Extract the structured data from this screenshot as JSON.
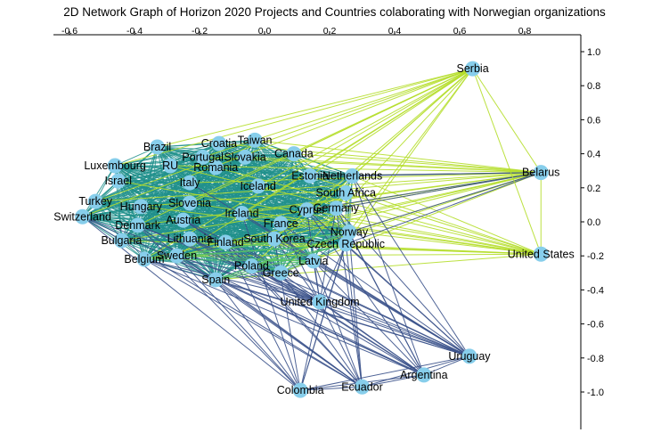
{
  "chart_data": {
    "type": "scatter",
    "title": "2D Network Graph of Horizon 2020 Projects and Countries colaborating with Norwegian organizations",
    "xlabel": "",
    "ylabel": "",
    "xlim": [
      -0.65,
      0.95
    ],
    "ylim": [
      -1.22,
      1.05
    ],
    "xticks": [
      -0.6,
      -0.4,
      -0.2,
      0.0,
      0.2,
      0.4,
      0.6,
      0.8
    ],
    "xtick_labels": [
      "-0.6",
      "-0.4",
      "-0.2",
      "0.0",
      "0.2",
      "0.4",
      "0.6",
      "0.8"
    ],
    "yticks": [
      1.0,
      0.8,
      0.6,
      0.4,
      0.2,
      0.0,
      -0.2,
      -0.4,
      -0.6,
      -0.8,
      -1.0
    ],
    "ytick_labels": [
      "1.0",
      "0.8",
      "0.6",
      "0.4",
      "0.2",
      "0.0",
      "-0.2",
      "-0.4",
      "-0.6",
      "-0.8",
      "-1.0"
    ],
    "grid": false,
    "node_color": "#87ceeb",
    "edge_colors": {
      "core": "#21918c",
      "outer_green": "#b5de2b",
      "outer_purple": "#3b528b",
      "mid": "#5ec962"
    },
    "nodes": [
      {
        "name": "Serbia",
        "x": 0.64,
        "y": 0.9
      },
      {
        "name": "Belarus",
        "x": 0.85,
        "y": 0.29
      },
      {
        "name": "United States",
        "x": 0.85,
        "y": -0.19
      },
      {
        "name": "Uruguay",
        "x": 0.63,
        "y": -0.79
      },
      {
        "name": "Argentina",
        "x": 0.49,
        "y": -0.9
      },
      {
        "name": "Ecuador",
        "x": 0.3,
        "y": -0.97
      },
      {
        "name": "Colombia",
        "x": 0.11,
        "y": -0.99
      },
      {
        "name": "United Kingdom",
        "x": 0.17,
        "y": -0.47
      },
      {
        "name": "Croatia",
        "x": -0.14,
        "y": 0.46
      },
      {
        "name": "Taiwan",
        "x": -0.03,
        "y": 0.48
      },
      {
        "name": "Brazil",
        "x": -0.33,
        "y": 0.44
      },
      {
        "name": "Canada",
        "x": 0.09,
        "y": 0.4
      },
      {
        "name": "Portugal",
        "x": -0.19,
        "y": 0.38
      },
      {
        "name": "Slovakia",
        "x": -0.06,
        "y": 0.38
      },
      {
        "name": "Luxembourg",
        "x": -0.46,
        "y": 0.33
      },
      {
        "name": "RU",
        "x": -0.29,
        "y": 0.33
      },
      {
        "name": "Romania",
        "x": -0.15,
        "y": 0.32
      },
      {
        "name": "Netherlands",
        "x": 0.27,
        "y": 0.27
      },
      {
        "name": "Estonia",
        "x": 0.14,
        "y": 0.27
      },
      {
        "name": "Israel",
        "x": -0.45,
        "y": 0.24
      },
      {
        "name": "Italy",
        "x": -0.23,
        "y": 0.23
      },
      {
        "name": "Iceland",
        "x": -0.02,
        "y": 0.21
      },
      {
        "name": "South Africa",
        "x": 0.25,
        "y": 0.17
      },
      {
        "name": "Turkey",
        "x": -0.52,
        "y": 0.12
      },
      {
        "name": "Hungary",
        "x": -0.38,
        "y": 0.09
      },
      {
        "name": "Slovenia",
        "x": -0.23,
        "y": 0.11
      },
      {
        "name": "Germany",
        "x": 0.22,
        "y": 0.08
      },
      {
        "name": "Cyprus",
        "x": 0.13,
        "y": 0.07
      },
      {
        "name": "Ireland",
        "x": -0.07,
        "y": 0.05
      },
      {
        "name": "Switzerland",
        "x": -0.56,
        "y": 0.03
      },
      {
        "name": "Austria",
        "x": -0.25,
        "y": 0.01
      },
      {
        "name": "France",
        "x": 0.05,
        "y": -0.01
      },
      {
        "name": "Denmark",
        "x": -0.39,
        "y": -0.02
      },
      {
        "name": "Norway",
        "x": 0.26,
        "y": -0.06
      },
      {
        "name": "Lithuania",
        "x": -0.23,
        "y": -0.1
      },
      {
        "name": "South Korea",
        "x": 0.03,
        "y": -0.1
      },
      {
        "name": "Czech Republic",
        "x": 0.25,
        "y": -0.13
      },
      {
        "name": "Finland",
        "x": -0.12,
        "y": -0.12
      },
      {
        "name": "Bulgaria",
        "x": -0.44,
        "y": -0.11
      },
      {
        "name": "Sweden",
        "x": -0.27,
        "y": -0.2
      },
      {
        "name": "Belgium",
        "x": -0.37,
        "y": -0.22
      },
      {
        "name": "Latvia",
        "x": 0.15,
        "y": -0.23
      },
      {
        "name": "Poland",
        "x": -0.04,
        "y": -0.26
      },
      {
        "name": "Greece",
        "x": 0.05,
        "y": -0.3
      },
      {
        "name": "Spain",
        "x": -0.15,
        "y": -0.34
      }
    ]
  }
}
